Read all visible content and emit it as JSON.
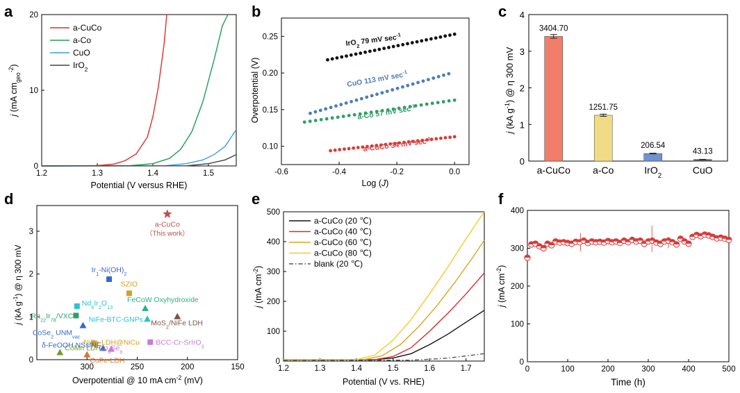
{
  "panel_labels": [
    "a",
    "b",
    "c",
    "d",
    "e",
    "f"
  ],
  "chart_data": [
    {
      "panel": "a",
      "type": "line",
      "xlabel": "Potential (V versus RHE)",
      "ylabel_parts": [
        "j",
        " (mA cm",
        "geo",
        "-2",
        ")"
      ],
      "xlim": [
        1.2,
        1.55
      ],
      "ylim": [
        0,
        20
      ],
      "xticks": [
        "1.2",
        "1.3",
        "1.4",
        "1.5"
      ],
      "yticks": [
        "0",
        "10",
        "20"
      ],
      "series": [
        {
          "name": "a-CuCo",
          "color": "#e02b2b",
          "x": [
            1.2,
            1.3,
            1.33,
            1.35,
            1.37,
            1.39,
            1.4,
            1.41,
            1.42,
            1.425
          ],
          "y": [
            0,
            0.05,
            0.25,
            0.7,
            1.6,
            3.8,
            6.5,
            10.5,
            16,
            20
          ]
        },
        {
          "name": "a-Co",
          "color": "#239b55",
          "x": [
            1.2,
            1.36,
            1.4,
            1.43,
            1.45,
            1.47,
            1.49,
            1.51,
            1.525,
            1.535
          ],
          "y": [
            0,
            0.05,
            0.3,
            1.0,
            2.2,
            4.5,
            8.5,
            14,
            18.5,
            20
          ]
        },
        {
          "name": "CuO",
          "color": "#3aa0d8",
          "x": [
            1.2,
            1.42,
            1.46,
            1.49,
            1.51,
            1.53,
            1.55
          ],
          "y": [
            0,
            0.02,
            0.3,
            0.8,
            1.5,
            2.6,
            4.8
          ]
        },
        {
          "name": "IrO",
          "sub": "2",
          "color": "#444444",
          "x": [
            1.2,
            1.46,
            1.5,
            1.53,
            1.55
          ],
          "y": [
            0,
            0.02,
            0.3,
            0.8,
            1.5
          ]
        }
      ]
    },
    {
      "panel": "b",
      "type": "scatter",
      "xlabel_parts": [
        "Log (",
        "J",
        ")"
      ],
      "ylabel": "Overpotential (V)",
      "xlim": [
        -0.6,
        0.05
      ],
      "ylim": [
        0.075,
        0.275
      ],
      "xticks": [
        "-0.6",
        "-0.4",
        "-0.2",
        "0.0"
      ],
      "yticks": [
        "0.10",
        "0.15",
        "0.20",
        "0.25"
      ],
      "series": [
        {
          "name": "IrO2",
          "annotation": [
            "IrO",
            "2",
            " 79 mV sec",
            "-1"
          ],
          "color": "#111111",
          "x_start": -0.44,
          "x_end": 0.0,
          "y_start": 0.218,
          "y_end": 0.253
        },
        {
          "name": "CuO",
          "annotation": [
            "CuO 113 mV sec",
            "-1"
          ],
          "color": "#4a7db8",
          "x_start": -0.5,
          "x_end": -0.02,
          "y_start": 0.145,
          "y_end": 0.199
        },
        {
          "name": "a-Co",
          "annotation": [
            "a-Co 57 mV sec",
            "-1"
          ],
          "color": "#2e9e6a",
          "x_start": -0.52,
          "x_end": 0.0,
          "y_start": 0.133,
          "y_end": 0.163
        },
        {
          "name": "a-CuCo",
          "annotation": [
            "a-CuCo 34 mV sec",
            "-1"
          ],
          "color": "#d93a3a",
          "x_start": -0.43,
          "x_end": 0.0,
          "y_start": 0.094,
          "y_end": 0.113
        }
      ]
    },
    {
      "panel": "c",
      "type": "bar",
      "ylabel_parts": [
        "j",
        " (kA g",
        "-1",
        ") @ η 300 mV"
      ],
      "ylim": [
        0,
        4
      ],
      "yticks": [
        "0",
        "1",
        "2",
        "3",
        "4"
      ],
      "categories": [
        [
          "a-CuCo",
          ""
        ],
        [
          "a-Co",
          ""
        ],
        [
          "IrO",
          "2"
        ],
        [
          "CuO",
          ""
        ]
      ],
      "values": [
        3.4047,
        1.25175,
        0.20654,
        0.04313
      ],
      "value_labels": [
        "3404.70",
        "1251.75",
        "206.54",
        "43.13"
      ],
      "errors": [
        0.05,
        0.03,
        0.01,
        0.005
      ],
      "colors": [
        "#f07e68",
        "#f1dc86",
        "#6f93cf",
        "#5a5a5a"
      ]
    },
    {
      "panel": "d",
      "type": "scatter",
      "xlabel_parts": [
        "Overpotential @ 10 mA cm",
        "-2",
        " (mV)"
      ],
      "ylabel_parts": [
        "j",
        " (kA g",
        "-1",
        ") @ η 300 mV"
      ],
      "xlim": [
        350,
        150
      ],
      "ylim": [
        0,
        3.6
      ],
      "xticks": [
        "300",
        "250",
        "200",
        "150"
      ],
      "yticks": [
        "0",
        "1",
        "2",
        "3"
      ],
      "points": [
        {
          "label": [
            "a-CuCo"
          ],
          "note": "（This work）",
          "x": 220,
          "y": 3.4,
          "color": "#c0504d",
          "marker": "star"
        },
        {
          "label": [
            "Ir",
            "1",
            "-Ni(OH)",
            "2"
          ],
          "x": 278,
          "y": 1.88,
          "color": "#3368c9",
          "marker": "square"
        },
        {
          "label": [
            "SZIO"
          ],
          "x": 258,
          "y": 1.55,
          "color": "#d4a11e",
          "marker": "square"
        },
        {
          "label": [
            "FeCoW Oxyhydroxide"
          ],
          "x": 242,
          "y": 1.2,
          "color": "#2bb08a",
          "marker": "tri"
        },
        {
          "label": [
            "Nd",
            "6",
            "Ir",
            "2",
            "O",
            "13"
          ],
          "x": 310,
          "y": 1.25,
          "color": "#29c3d1",
          "marker": "square"
        },
        {
          "label": [
            "Rh",
            "22",
            "Ir",
            "78",
            "/VXC"
          ],
          "x": 311,
          "y": 1.03,
          "color": "#2e9e6a",
          "marker": "square"
        },
        {
          "label": [
            "NiFe-BTC-GNPs"
          ],
          "x": 240,
          "y": 0.95,
          "color": "#29c3d1",
          "marker": "tri"
        },
        {
          "label": [
            "MoS",
            "2",
            "/NiFe LDH"
          ],
          "x": 210,
          "y": 1.01,
          "color": "#7a5548",
          "marker": "tri"
        },
        {
          "label": [
            "CoSe",
            "2",
            " UNM",
            "vac"
          ],
          "x": 304,
          "y": 0.8,
          "color": "#3368c9",
          "marker": "tri"
        },
        {
          "label": [
            "NiFe-LDH@NiCu"
          ],
          "x": 293,
          "y": 0.38,
          "color": "#d4a11e",
          "marker": "square"
        },
        {
          "label": [
            "BCC-Cr-SrIrO",
            "3"
          ],
          "x": 237,
          "y": 0.41,
          "color": "#c97bd6",
          "marker": "square"
        },
        {
          "label": [
            "δ-FeOOH NSs/NF"
          ],
          "x": 284,
          "y": 0.27,
          "color": "#3368c9",
          "marker": "tri"
        },
        {
          "label": [
            "Co",
            "4",
            "Se",
            "8"
          ],
          "x": 276,
          "y": 0.25,
          "color": "#c97bd6",
          "marker": "tri"
        },
        {
          "label": [
            "CoMn LDH"
          ],
          "x": 327,
          "y": 0.17,
          "color": "#7a9a2a",
          "marker": "tri"
        },
        {
          "label": [
            "CoFe-LDH"
          ],
          "x": 300,
          "y": 0.12,
          "color": "#e0742b",
          "marker": "tri"
        }
      ]
    },
    {
      "panel": "e",
      "type": "line",
      "xlabel": "Potential (V vs. RHE)",
      "ylabel_parts": [
        "j",
        " (mA cm",
        "-2",
        ")"
      ],
      "xlim": [
        1.2,
        1.75
      ],
      "ylim": [
        0,
        500
      ],
      "xticks": [
        "1.2",
        "1.3",
        "1.4",
        "1.5",
        "1.6",
        "1.7"
      ],
      "yticks": [
        "0",
        "100",
        "200",
        "300",
        "400",
        "500"
      ],
      "series": [
        {
          "name": "a-CuCo (20 ℃)",
          "color": "#111111",
          "x": [
            1.2,
            1.45,
            1.5,
            1.55,
            1.6,
            1.65,
            1.7,
            1.75
          ],
          "y": [
            5,
            5,
            10,
            25,
            55,
            90,
            130,
            170
          ]
        },
        {
          "name": "a-CuCo (40 ℃)",
          "color": "#d62a2a",
          "x": [
            1.2,
            1.45,
            1.5,
            1.55,
            1.6,
            1.65,
            1.7,
            1.75
          ],
          "y": [
            5,
            5,
            15,
            45,
            100,
            160,
            225,
            295
          ]
        },
        {
          "name": "a-CuCo (60 ℃)",
          "color": "#d9a521",
          "x": [
            1.2,
            1.42,
            1.47,
            1.52,
            1.57,
            1.62,
            1.67,
            1.72,
            1.75
          ],
          "y": [
            5,
            5,
            18,
            55,
            115,
            185,
            265,
            350,
            405
          ]
        },
        {
          "name": "a-CuCo (80 ℃)",
          "color": "#f2cc2a",
          "x": [
            1.2,
            1.4,
            1.45,
            1.5,
            1.55,
            1.6,
            1.65,
            1.7,
            1.75
          ],
          "y": [
            5,
            5,
            20,
            70,
            140,
            225,
            315,
            410,
            500
          ]
        },
        {
          "name": "blank (20 ℃)",
          "color": "#555555",
          "dash": true,
          "x": [
            1.2,
            1.55,
            1.6,
            1.65,
            1.7,
            1.75
          ],
          "y": [
            2,
            3,
            6,
            10,
            17,
            25
          ]
        }
      ]
    },
    {
      "panel": "f",
      "type": "scatter",
      "xlabel": "Time (h)",
      "ylabel_parts": [
        "j",
        " (mA cm",
        "-2",
        ")"
      ],
      "xlim": [
        0,
        500
      ],
      "ylim": [
        0,
        400
      ],
      "xticks": [
        "0",
        "100",
        "200",
        "300",
        "400",
        "500"
      ],
      "yticks": [
        "0",
        "100",
        "200",
        "300",
        "400"
      ],
      "color": "#d93a3a",
      "x": [
        0,
        10,
        20,
        30,
        40,
        50,
        60,
        70,
        80,
        90,
        100,
        110,
        120,
        130,
        140,
        150,
        160,
        170,
        180,
        190,
        200,
        210,
        220,
        230,
        240,
        250,
        260,
        270,
        280,
        290,
        300,
        310,
        320,
        330,
        340,
        350,
        360,
        370,
        380,
        390,
        400,
        410,
        420,
        430,
        440,
        450,
        460,
        470,
        480,
        490,
        500
      ],
      "y": [
        275,
        310,
        312,
        305,
        300,
        312,
        308,
        318,
        315,
        316,
        314,
        312,
        317,
        316,
        320,
        314,
        318,
        316,
        317,
        315,
        319,
        316,
        318,
        314,
        320,
        316,
        322,
        318,
        320,
        312,
        318,
        320,
        315,
        312,
        318,
        320,
        316,
        310,
        325,
        318,
        312,
        330,
        335,
        332,
        336,
        334,
        330,
        326,
        328,
        325,
        322
      ]
    }
  ]
}
